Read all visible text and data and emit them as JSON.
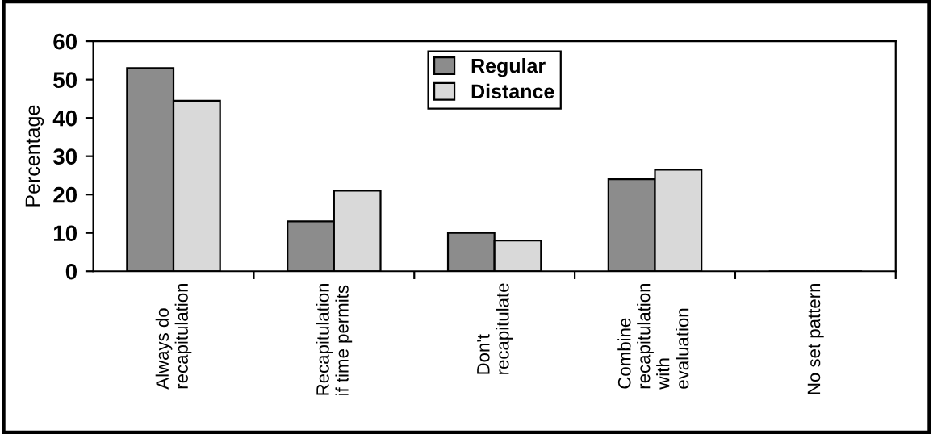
{
  "chart_data": {
    "type": "bar",
    "ylabel": "Percentage",
    "categories": [
      "Always do\nrecapitulation",
      "Recapitulation\nif time permits",
      "Don't\nrecapitulate",
      "Combine\nrecapitulation\nwith\nevaluation",
      "No set pattern"
    ],
    "series": [
      {
        "name": "Regular",
        "color": "#8c8c8c",
        "values": [
          53,
          13,
          10,
          24,
          0
        ]
      },
      {
        "name": "Distance",
        "color": "#d9d9d9",
        "values": [
          44.5,
          21,
          8,
          26.5,
          0
        ]
      }
    ],
    "ylim": [
      0,
      60
    ],
    "yticks": [
      0,
      10,
      20,
      30,
      40,
      50,
      60
    ],
    "grid": false,
    "legend": "top center"
  }
}
